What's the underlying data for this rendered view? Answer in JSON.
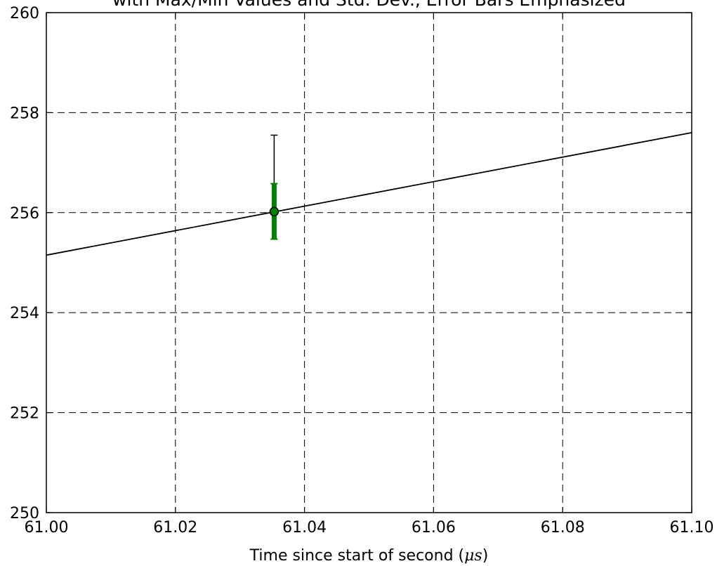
{
  "chart_data": {
    "type": "line",
    "title": "with Max/Min Values and Std. Dev., Error Bars Emphasized",
    "xlabel": "Time since start of second (",
    "xlabel_unit": "μs",
    "xlabel_close": ")",
    "ylabel": "",
    "xlim": [
      61.0,
      61.1
    ],
    "ylim": [
      250,
      260
    ],
    "xticks": [
      61.0,
      61.02,
      61.04,
      61.06,
      61.08,
      61.1
    ],
    "xtick_labels": [
      "61.00",
      "61.02",
      "61.04",
      "61.06",
      "61.08",
      "61.10"
    ],
    "yticks": [
      250,
      252,
      254,
      256,
      258,
      260
    ],
    "ytick_labels": [
      "250",
      "252",
      "254",
      "256",
      "258",
      "260"
    ],
    "grid": true,
    "grid_style": "dashed",
    "legend": false,
    "series": [
      {
        "kind": "fit-line",
        "color": "#000000",
        "x": [
          61.0,
          61.1
        ],
        "y": [
          255.15,
          257.6
        ]
      },
      {
        "kind": "errorbar-point",
        "x": 61.0353,
        "y": 256.02,
        "min": 255.47,
        "max": 257.55,
        "std_low": 255.47,
        "std_high": 256.58,
        "color_point": "#008000",
        "color_range": "#000000",
        "color_std": "#008000"
      }
    ]
  }
}
